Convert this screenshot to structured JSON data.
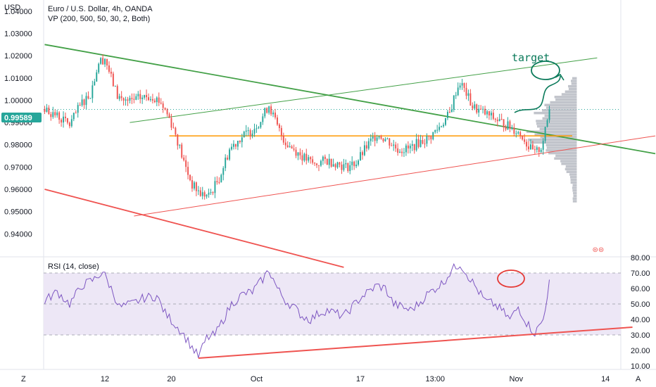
{
  "header": {
    "symbol": "Euro / U.S. Dollar, 4h, OANDA",
    "indicator": "VP (200, 500, 50, 30, 2, Both)",
    "currency": "USD"
  },
  "price_tag": "0.99589",
  "annotation": "target",
  "rsi": {
    "title": "RSI (14, close)"
  },
  "bottom_bar": {
    "left": "Z",
    "right": "A"
  },
  "colors": {
    "up": "#26a69a",
    "down": "#ef5350",
    "green_line": "#43a047",
    "red_line": "#ef5350",
    "orange": "#ff9800",
    "rsi_line": "#7e57c2",
    "rsi_band": "#ede7f6",
    "price_tag": "#26a69a",
    "vp": "#b2b5be"
  },
  "chart_data": [
    {
      "type": "candlestick",
      "title": "Euro / U.S. Dollar, 4h, OANDA",
      "ylabel": "USD",
      "ylim": [
        0.93,
        1.045
      ],
      "yticks": [
        "1.04000",
        "1.03000",
        "1.02000",
        "1.01000",
        "1.00000",
        "0.99000",
        "0.98000",
        "0.97000",
        "0.96000",
        "0.95000",
        "0.94000"
      ],
      "xticks": [
        "12",
        "20",
        "Oct",
        "17",
        "13:00",
        "Nov",
        "14"
      ],
      "last_price": 0.99589,
      "anchors": [
        [
          0,
          0.996
        ],
        [
          6,
          0.993
        ],
        [
          12,
          0.989
        ],
        [
          18,
          0.999
        ],
        [
          22,
          1.003
        ],
        [
          26,
          1.017
        ],
        [
          29,
          1.019
        ],
        [
          32,
          1.01
        ],
        [
          35,
          1.002
        ],
        [
          40,
          0.999
        ],
        [
          46,
          1.001
        ],
        [
          52,
          1.002
        ],
        [
          56,
          0.999
        ],
        [
          60,
          0.992
        ],
        [
          63,
          0.985
        ],
        [
          67,
          0.972
        ],
        [
          71,
          0.962
        ],
        [
          75,
          0.958
        ],
        [
          79,
          0.957
        ],
        [
          84,
          0.965
        ],
        [
          89,
          0.978
        ],
        [
          94,
          0.983
        ],
        [
          99,
          0.986
        ],
        [
          104,
          0.991
        ],
        [
          108,
          0.998
        ],
        [
          112,
          0.988
        ],
        [
          116,
          0.981
        ],
        [
          120,
          0.978
        ],
        [
          125,
          0.974
        ],
        [
          130,
          0.971
        ],
        [
          135,
          0.973
        ],
        [
          140,
          0.972
        ],
        [
          145,
          0.97
        ],
        [
          150,
          0.972
        ],
        [
          155,
          0.979
        ],
        [
          160,
          0.985
        ],
        [
          165,
          0.982
        ],
        [
          170,
          0.978
        ],
        [
          175,
          0.978
        ],
        [
          180,
          0.981
        ],
        [
          185,
          0.983
        ],
        [
          190,
          0.988
        ],
        [
          195,
          0.994
        ],
        [
          198,
          1.004
        ],
        [
          200,
          1.008
        ],
        [
          203,
          1.003
        ],
        [
          206,
          0.997
        ],
        [
          210,
          0.995
        ],
        [
          214,
          0.993
        ],
        [
          218,
          0.991
        ],
        [
          222,
          0.989
        ],
        [
          226,
          0.987
        ],
        [
          230,
          0.984
        ],
        [
          233,
          0.979
        ],
        [
          236,
          0.976
        ],
        [
          239,
          0.979
        ],
        [
          241,
          0.986
        ],
        [
          243,
          0.9958
        ]
      ],
      "lines": {
        "green_down_trend": [
          [
            1.025,
            0
          ],
          [
            0.976,
            294
          ]
        ],
        "green_up_channel": [
          [
            0.99,
            41
          ],
          [
            1.019,
            266
          ]
        ],
        "red_up_support": [
          [
            0.948,
            43
          ],
          [
            0.984,
            294
          ]
        ],
        "red_down": [
          [
            0.96,
            0
          ],
          [
            0.925,
            144
          ]
        ],
        "orange_level": [
          [
            0.984,
            60
          ],
          [
            0.984,
            254
          ]
        ]
      }
    },
    {
      "type": "line",
      "title": "RSI (14, close)",
      "ylim": [
        10,
        80
      ],
      "yticks": [
        80,
        70,
        60,
        50,
        40,
        30,
        20,
        10
      ],
      "bands": [
        30,
        50,
        70
      ],
      "anchors": [
        [
          0,
          52
        ],
        [
          6,
          58
        ],
        [
          12,
          50
        ],
        [
          18,
          62
        ],
        [
          24,
          66
        ],
        [
          28,
          71
        ],
        [
          32,
          60
        ],
        [
          36,
          48
        ],
        [
          42,
          50
        ],
        [
          48,
          54
        ],
        [
          54,
          55
        ],
        [
          58,
          44
        ],
        [
          62,
          38
        ],
        [
          66,
          32
        ],
        [
          70,
          24
        ],
        [
          74,
          16
        ],
        [
          78,
          28
        ],
        [
          82,
          30
        ],
        [
          86,
          40
        ],
        [
          90,
          50
        ],
        [
          95,
          56
        ],
        [
          100,
          58
        ],
        [
          105,
          66
        ],
        [
          108,
          72
        ],
        [
          112,
          60
        ],
        [
          116,
          52
        ],
        [
          120,
          48
        ],
        [
          124,
          42
        ],
        [
          128,
          40
        ],
        [
          132,
          44
        ],
        [
          136,
          46
        ],
        [
          140,
          44
        ],
        [
          144,
          42
        ],
        [
          148,
          48
        ],
        [
          152,
          54
        ],
        [
          156,
          58
        ],
        [
          160,
          62
        ],
        [
          164,
          60
        ],
        [
          168,
          50
        ],
        [
          172,
          48
        ],
        [
          176,
          46
        ],
        [
          180,
          50
        ],
        [
          184,
          56
        ],
        [
          188,
          60
        ],
        [
          192,
          64
        ],
        [
          196,
          72
        ],
        [
          200,
          76
        ],
        [
          204,
          68
        ],
        [
          208,
          60
        ],
        [
          212,
          52
        ],
        [
          216,
          50
        ],
        [
          220,
          46
        ],
        [
          224,
          40
        ],
        [
          228,
          48
        ],
        [
          232,
          38
        ],
        [
          236,
          31
        ],
        [
          240,
          40
        ],
        [
          243,
          64
        ]
      ],
      "trendline": [
        [
          15,
          74
        ],
        [
          295,
          243
        ]
      ]
    }
  ]
}
